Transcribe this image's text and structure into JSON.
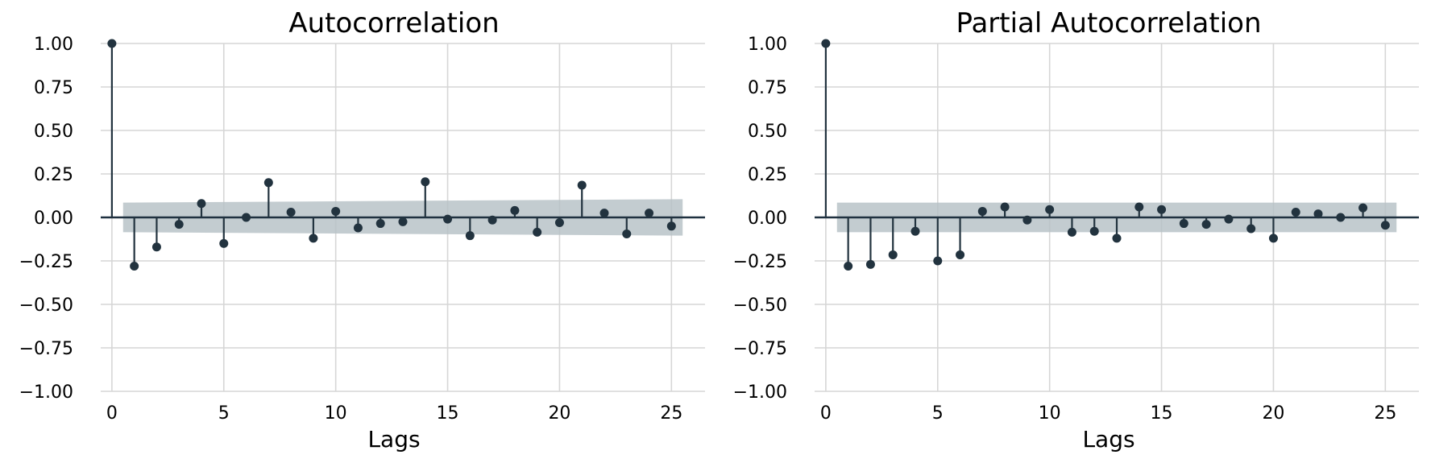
{
  "colors": {
    "stem": "#22333f",
    "band": "#b6c1c6",
    "grid": "#d6d6d6",
    "zero_line": "#1f3140"
  },
  "chart_data": [
    {
      "type": "scatter",
      "style": "stem",
      "title": "Autocorrelation",
      "xlabel": "Lags",
      "ylabel": "",
      "xlim": [
        -0.5,
        26.5
      ],
      "ylim": [
        -1.0,
        1.0
      ],
      "xticks": [
        0,
        5,
        10,
        15,
        20,
        25
      ],
      "yticks": [
        -1.0,
        -0.75,
        -0.5,
        -0.25,
        0.0,
        0.25,
        0.5,
        0.75,
        1.0
      ],
      "ytick_labels": [
        "−1.00",
        "−0.75",
        "−0.50",
        "−0.25",
        "0.00",
        "0.25",
        "0.50",
        "0.75",
        "1.00"
      ],
      "xtick_labels": [
        "0",
        "5",
        "10",
        "15",
        "20",
        "25"
      ],
      "grid": true,
      "lags": [
        0,
        1,
        2,
        3,
        4,
        5,
        6,
        7,
        8,
        9,
        10,
        11,
        12,
        13,
        14,
        15,
        16,
        17,
        18,
        19,
        20,
        21,
        22,
        23,
        24,
        25
      ],
      "values": [
        1.0,
        -0.28,
        -0.17,
        -0.04,
        0.08,
        -0.15,
        0.0,
        0.2,
        0.03,
        -0.12,
        0.035,
        -0.06,
        -0.035,
        -0.025,
        0.205,
        -0.01,
        -0.105,
        -0.015,
        0.04,
        -0.085,
        -0.03,
        0.185,
        0.025,
        -0.095,
        0.025,
        -0.05
      ],
      "confidence_band": {
        "x": [
          0.5,
          25.5
        ],
        "upper": [
          0.085,
          0.105
        ],
        "lower": [
          -0.085,
          -0.105
        ]
      }
    },
    {
      "type": "scatter",
      "style": "stem",
      "title": "Partial Autocorrelation",
      "xlabel": "Lags",
      "ylabel": "",
      "xlim": [
        -0.5,
        26.5
      ],
      "ylim": [
        -1.0,
        1.0
      ],
      "xticks": [
        0,
        5,
        10,
        15,
        20,
        25
      ],
      "yticks": [
        -1.0,
        -0.75,
        -0.5,
        -0.25,
        0.0,
        0.25,
        0.5,
        0.75,
        1.0
      ],
      "ytick_labels": [
        "−1.00",
        "−0.75",
        "−0.50",
        "−0.25",
        "0.00",
        "0.25",
        "0.50",
        "0.75",
        "1.00"
      ],
      "xtick_labels": [
        "0",
        "5",
        "10",
        "15",
        "20",
        "25"
      ],
      "grid": true,
      "lags": [
        0,
        1,
        2,
        3,
        4,
        5,
        6,
        7,
        8,
        9,
        10,
        11,
        12,
        13,
        14,
        15,
        16,
        17,
        18,
        19,
        20,
        21,
        22,
        23,
        24,
        25
      ],
      "values": [
        1.0,
        -0.28,
        -0.27,
        -0.215,
        -0.08,
        -0.25,
        -0.215,
        0.035,
        0.06,
        -0.015,
        0.045,
        -0.085,
        -0.08,
        -0.12,
        0.06,
        0.045,
        -0.035,
        -0.04,
        -0.01,
        -0.065,
        -0.12,
        0.03,
        0.02,
        0.0,
        0.055,
        -0.045
      ],
      "confidence_band": {
        "x": [
          0.5,
          25.5
        ],
        "upper": [
          0.085,
          0.085
        ],
        "lower": [
          -0.085,
          -0.085
        ]
      }
    }
  ]
}
